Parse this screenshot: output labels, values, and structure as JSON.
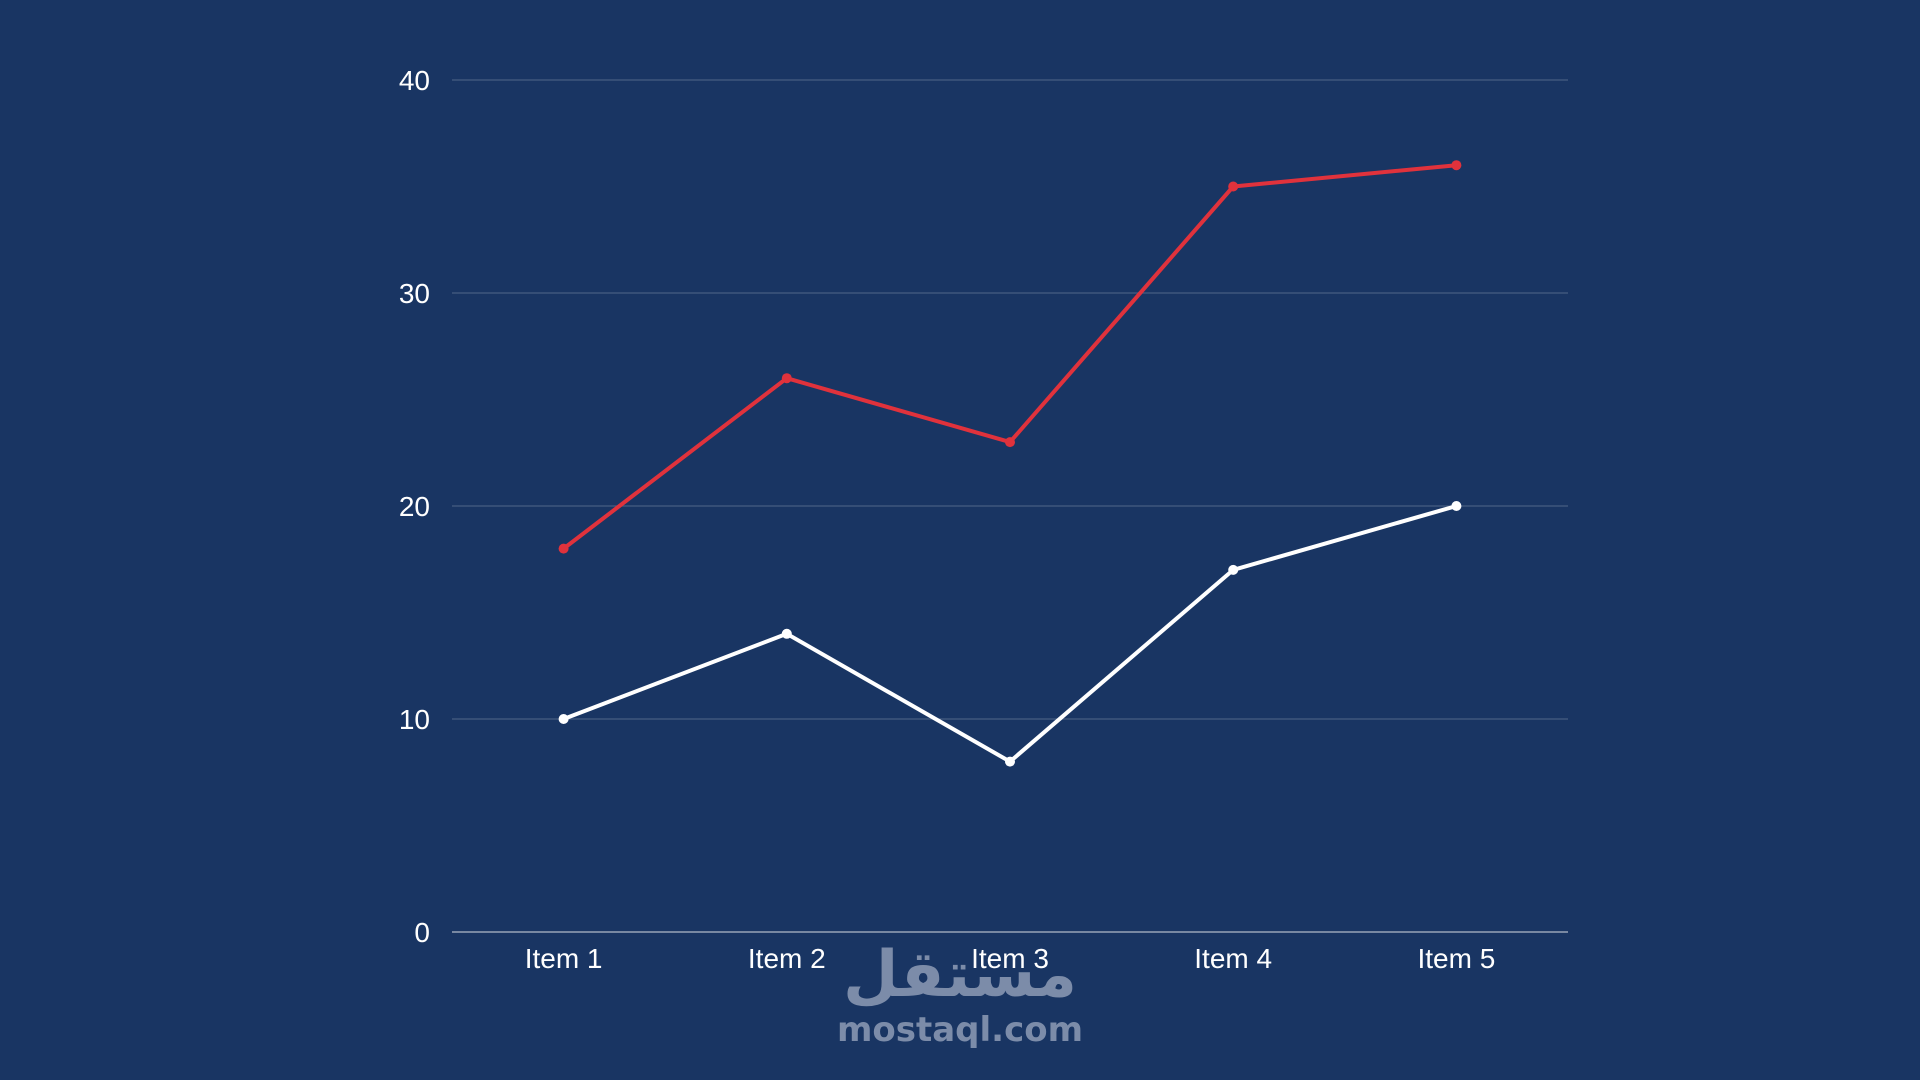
{
  "chart_data": {
    "type": "line",
    "categories": [
      "Item 1",
      "Item 2",
      "Item 3",
      "Item 4",
      "Item 5"
    ],
    "series": [
      {
        "values": [
          18,
          26,
          23,
          35,
          36
        ],
        "color": "#e0323c"
      },
      {
        "values": [
          10,
          14,
          8,
          17,
          20
        ],
        "color": "#ffffff"
      }
    ],
    "ylim": [
      0,
      40
    ],
    "yticks": [
      0,
      10,
      20,
      30,
      40
    ],
    "grid": true,
    "legend": "none"
  },
  "watermark": {
    "arabic": "مستقل",
    "latin": "mostaql.com"
  }
}
